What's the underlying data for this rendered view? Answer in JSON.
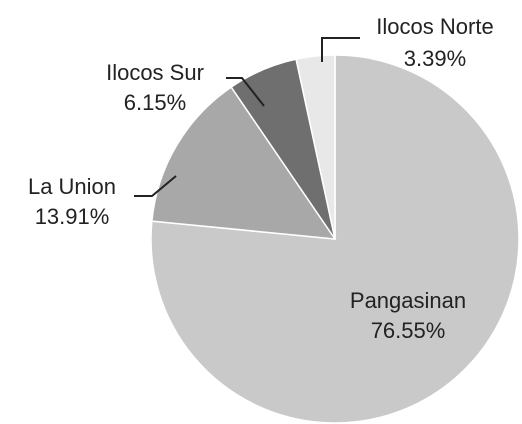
{
  "chart_data": {
    "type": "pie",
    "categories": [
      "Pangasinan",
      "La Union",
      "Ilocos Sur",
      "Ilocos Norte"
    ],
    "values": [
      76.55,
      13.91,
      6.15,
      3.39
    ],
    "value_labels": [
      "76.55%",
      "13.91%",
      "6.15%",
      "3.39%"
    ],
    "colors": [
      "#c9c9c9",
      "#a8a8a8",
      "#6f6f6f",
      "#e8e8e8"
    ]
  }
}
